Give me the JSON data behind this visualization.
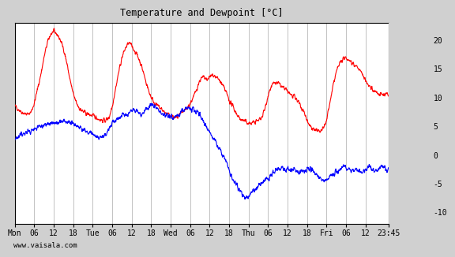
{
  "title": "Temperature and Dewpoint [°C]",
  "ylabel_right_ticks": [
    -10,
    -5,
    0,
    5,
    10,
    15,
    20
  ],
  "ylim": [
    -12,
    23
  ],
  "xlim": [
    0,
    115
  ],
  "bg_color": "#d0d0d0",
  "plot_bg_color": "#ffffff",
  "grid_color": "#aaaaaa",
  "temp_color": "red",
  "dew_color": "blue",
  "line_width": 0.8,
  "xtick_labels": [
    "Mon",
    "06",
    "12",
    "18",
    "Tue",
    "06",
    "12",
    "18",
    "Wed",
    "06",
    "12",
    "18",
    "Thu",
    "06",
    "12",
    "18",
    "Fri",
    "06",
    "12",
    "23:45"
  ],
  "xtick_positions": [
    0,
    6,
    12,
    18,
    24,
    30,
    36,
    42,
    48,
    54,
    60,
    66,
    72,
    78,
    84,
    90,
    96,
    102,
    108,
    115
  ],
  "watermark": "www.vaisala.com",
  "temp_data": [
    [
      0,
      8.5
    ],
    [
      1,
      8.0
    ],
    [
      2,
      7.5
    ],
    [
      3,
      7.2
    ],
    [
      4,
      7.0
    ],
    [
      5,
      7.5
    ],
    [
      6,
      9.0
    ],
    [
      7,
      11.5
    ],
    [
      8,
      14.0
    ],
    [
      9,
      17.0
    ],
    [
      10,
      19.5
    ],
    [
      11,
      21.0
    ],
    [
      12,
      21.5
    ],
    [
      13,
      21.0
    ],
    [
      14,
      20.0
    ],
    [
      15,
      18.5
    ],
    [
      16,
      16.0
    ],
    [
      17,
      13.0
    ],
    [
      18,
      10.5
    ],
    [
      19,
      9.0
    ],
    [
      20,
      8.0
    ],
    [
      21,
      7.5
    ],
    [
      22,
      7.2
    ],
    [
      23,
      7.0
    ],
    [
      24,
      6.8
    ],
    [
      25,
      6.5
    ],
    [
      26,
      6.2
    ],
    [
      27,
      6.0
    ],
    [
      28,
      6.0
    ],
    [
      29,
      6.5
    ],
    [
      30,
      8.5
    ],
    [
      31,
      11.5
    ],
    [
      32,
      14.5
    ],
    [
      33,
      17.0
    ],
    [
      34,
      18.5
    ],
    [
      35,
      19.5
    ],
    [
      36,
      19.0
    ],
    [
      37,
      18.0
    ],
    [
      38,
      17.0
    ],
    [
      39,
      15.5
    ],
    [
      40,
      13.5
    ],
    [
      41,
      11.5
    ],
    [
      42,
      10.0
    ],
    [
      43,
      9.0
    ],
    [
      44,
      8.5
    ],
    [
      45,
      8.0
    ],
    [
      46,
      7.5
    ],
    [
      47,
      7.0
    ],
    [
      48,
      6.8
    ],
    [
      49,
      6.5
    ],
    [
      50,
      6.5
    ],
    [
      51,
      7.0
    ],
    [
      52,
      7.5
    ],
    [
      53,
      8.0
    ],
    [
      54,
      9.0
    ],
    [
      55,
      10.0
    ],
    [
      56,
      11.5
    ],
    [
      57,
      13.0
    ],
    [
      58,
      13.5
    ],
    [
      59,
      13.0
    ],
    [
      60,
      13.5
    ],
    [
      61,
      14.0
    ],
    [
      62,
      13.5
    ],
    [
      63,
      13.0
    ],
    [
      64,
      12.0
    ],
    [
      65,
      11.0
    ],
    [
      66,
      9.5
    ],
    [
      67,
      8.5
    ],
    [
      68,
      7.5
    ],
    [
      69,
      6.5
    ],
    [
      70,
      6.0
    ],
    [
      71,
      5.8
    ],
    [
      72,
      5.5
    ],
    [
      73,
      5.5
    ],
    [
      74,
      5.8
    ],
    [
      75,
      6.0
    ],
    [
      76,
      6.5
    ],
    [
      77,
      8.0
    ],
    [
      78,
      10.5
    ],
    [
      79,
      12.0
    ],
    [
      80,
      12.5
    ],
    [
      81,
      12.5
    ],
    [
      82,
      12.0
    ],
    [
      83,
      11.5
    ],
    [
      84,
      11.0
    ],
    [
      85,
      10.5
    ],
    [
      86,
      10.0
    ],
    [
      87,
      9.5
    ],
    [
      88,
      8.5
    ],
    [
      89,
      7.5
    ],
    [
      90,
      6.0
    ],
    [
      91,
      5.0
    ],
    [
      92,
      4.5
    ],
    [
      93,
      4.2
    ],
    [
      94,
      4.0
    ],
    [
      95,
      4.5
    ],
    [
      96,
      6.0
    ],
    [
      97,
      9.0
    ],
    [
      98,
      12.0
    ],
    [
      99,
      14.5
    ],
    [
      100,
      16.0
    ],
    [
      101,
      16.5
    ],
    [
      102,
      17.0
    ],
    [
      103,
      16.5
    ],
    [
      104,
      16.0
    ],
    [
      105,
      15.5
    ],
    [
      106,
      15.0
    ],
    [
      107,
      14.0
    ],
    [
      108,
      13.0
    ],
    [
      109,
      12.0
    ],
    [
      110,
      11.5
    ],
    [
      111,
      11.0
    ],
    [
      112,
      10.5
    ],
    [
      113,
      10.5
    ],
    [
      114,
      10.5
    ],
    [
      115,
      10.5
    ]
  ],
  "dew_data": [
    [
      0,
      3.0
    ],
    [
      1,
      3.2
    ],
    [
      2,
      3.5
    ],
    [
      3,
      3.8
    ],
    [
      4,
      4.0
    ],
    [
      5,
      4.2
    ],
    [
      6,
      4.5
    ],
    [
      7,
      4.8
    ],
    [
      8,
      5.0
    ],
    [
      9,
      5.2
    ],
    [
      10,
      5.3
    ],
    [
      11,
      5.5
    ],
    [
      12,
      5.5
    ],
    [
      13,
      5.5
    ],
    [
      14,
      5.8
    ],
    [
      15,
      6.0
    ],
    [
      16,
      5.8
    ],
    [
      17,
      5.5
    ],
    [
      18,
      5.2
    ],
    [
      19,
      5.0
    ],
    [
      20,
      4.8
    ],
    [
      21,
      4.5
    ],
    [
      22,
      4.2
    ],
    [
      23,
      4.0
    ],
    [
      24,
      3.5
    ],
    [
      25,
      3.2
    ],
    [
      26,
      3.0
    ],
    [
      27,
      3.0
    ],
    [
      28,
      3.5
    ],
    [
      29,
      4.5
    ],
    [
      30,
      5.5
    ],
    [
      31,
      6.0
    ],
    [
      32,
      6.5
    ],
    [
      33,
      6.8
    ],
    [
      34,
      7.0
    ],
    [
      35,
      7.2
    ],
    [
      36,
      7.5
    ],
    [
      37,
      7.8
    ],
    [
      38,
      7.5
    ],
    [
      39,
      7.0
    ],
    [
      40,
      7.5
    ],
    [
      41,
      8.0
    ],
    [
      42,
      8.5
    ],
    [
      43,
      8.5
    ],
    [
      44,
      8.0
    ],
    [
      45,
      7.5
    ],
    [
      46,
      7.0
    ],
    [
      47,
      6.8
    ],
    [
      48,
      6.5
    ],
    [
      49,
      6.5
    ],
    [
      50,
      7.0
    ],
    [
      51,
      7.5
    ],
    [
      52,
      7.8
    ],
    [
      53,
      8.0
    ],
    [
      54,
      8.0
    ],
    [
      55,
      8.0
    ],
    [
      56,
      7.5
    ],
    [
      57,
      7.0
    ],
    [
      58,
      6.0
    ],
    [
      59,
      5.0
    ],
    [
      60,
      4.0
    ],
    [
      61,
      3.0
    ],
    [
      62,
      2.0
    ],
    [
      63,
      1.0
    ],
    [
      64,
      0.0
    ],
    [
      65,
      -1.0
    ],
    [
      66,
      -2.5
    ],
    [
      67,
      -4.0
    ],
    [
      68,
      -5.0
    ],
    [
      69,
      -6.0
    ],
    [
      70,
      -7.0
    ],
    [
      71,
      -7.5
    ],
    [
      72,
      -7.5
    ],
    [
      73,
      -6.5
    ],
    [
      74,
      -6.0
    ],
    [
      75,
      -5.5
    ],
    [
      76,
      -5.0
    ],
    [
      77,
      -4.5
    ],
    [
      78,
      -4.0
    ],
    [
      79,
      -3.5
    ],
    [
      80,
      -3.0
    ],
    [
      81,
      -2.5
    ],
    [
      82,
      -2.5
    ],
    [
      83,
      -2.5
    ],
    [
      84,
      -2.5
    ],
    [
      85,
      -2.5
    ],
    [
      86,
      -2.5
    ],
    [
      87,
      -3.0
    ],
    [
      88,
      -3.0
    ],
    [
      89,
      -3.0
    ],
    [
      90,
      -2.5
    ],
    [
      91,
      -2.5
    ],
    [
      92,
      -3.0
    ],
    [
      93,
      -3.5
    ],
    [
      94,
      -4.0
    ],
    [
      95,
      -4.5
    ],
    [
      96,
      -4.5
    ],
    [
      97,
      -4.0
    ],
    [
      98,
      -3.5
    ],
    [
      99,
      -3.0
    ],
    [
      100,
      -2.5
    ],
    [
      101,
      -2.0
    ],
    [
      102,
      -2.0
    ],
    [
      103,
      -2.5
    ],
    [
      104,
      -2.5
    ],
    [
      105,
      -2.5
    ],
    [
      106,
      -2.8
    ],
    [
      107,
      -3.0
    ],
    [
      108,
      -2.5
    ],
    [
      109,
      -2.0
    ],
    [
      110,
      -2.5
    ],
    [
      111,
      -3.0
    ],
    [
      112,
      -2.5
    ],
    [
      113,
      -2.0
    ],
    [
      114,
      -2.5
    ],
    [
      115,
      -2.5
    ]
  ]
}
